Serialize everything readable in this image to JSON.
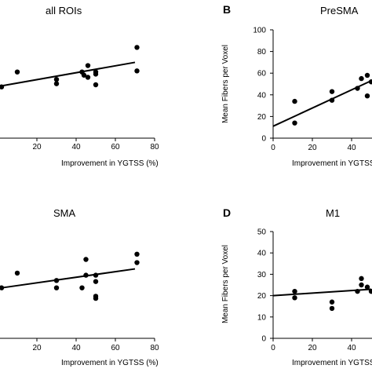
{
  "chart_data": [
    {
      "type": "scatter",
      "letter": "",
      "title": "all ROIs",
      "xlabel": "Improvement in YGTSS (%)",
      "ylabel": "",
      "xlim": [
        0,
        80
      ],
      "x_ticks": [
        "20",
        "40",
        "60",
        "80"
      ],
      "y_ticks": [],
      "points": [
        {
          "x": 10,
          "y": 62
        },
        {
          "x": 2,
          "y": 48
        },
        {
          "x": 30,
          "y": 55
        },
        {
          "x": 30,
          "y": 51
        },
        {
          "x": 43,
          "y": 62
        },
        {
          "x": 44,
          "y": 59
        },
        {
          "x": 46,
          "y": 68
        },
        {
          "x": 46,
          "y": 57
        },
        {
          "x": 50,
          "y": 62
        },
        {
          "x": 50,
          "y": 60
        },
        {
          "x": 50,
          "y": 50
        },
        {
          "x": 71,
          "y": 85
        },
        {
          "x": 71,
          "y": 63
        }
      ],
      "fit": {
        "x0": 2,
        "y0": 49,
        "x1": 70,
        "y1": 71
      }
    },
    {
      "type": "scatter",
      "letter": "B",
      "title": "PreSMA",
      "xlabel": "Improvement in YGTSS (%)",
      "ylabel": "Mean Fibers per Voxel",
      "xlim": [
        0,
        80
      ],
      "ylim": [
        0,
        100
      ],
      "x_ticks": [
        "0",
        "20",
        "40",
        "60"
      ],
      "y_ticks": [
        "0",
        "20",
        "40",
        "60",
        "80",
        "100"
      ],
      "points": [
        {
          "x": 11,
          "y": 34
        },
        {
          "x": 11,
          "y": 14
        },
        {
          "x": 30,
          "y": 43
        },
        {
          "x": 30,
          "y": 35
        },
        {
          "x": 43,
          "y": 46
        },
        {
          "x": 45,
          "y": 55
        },
        {
          "x": 48,
          "y": 58
        },
        {
          "x": 48,
          "y": 39
        },
        {
          "x": 50,
          "y": 52
        }
      ],
      "fit": {
        "x0": 0,
        "y0": 11,
        "x1": 50,
        "y1": 53
      }
    },
    {
      "type": "scatter",
      "letter": "",
      "title": "SMA",
      "xlabel": "Improvement in YGTSS (%)",
      "ylabel": "",
      "xlim": [
        0,
        80
      ],
      "x_ticks": [
        "20",
        "40",
        "60",
        "80"
      ],
      "y_ticks": [],
      "points": [
        {
          "x": 10,
          "y": 62
        },
        {
          "x": 2,
          "y": 48
        },
        {
          "x": 30,
          "y": 55
        },
        {
          "x": 30,
          "y": 48
        },
        {
          "x": 43,
          "y": 48
        },
        {
          "x": 45,
          "y": 75
        },
        {
          "x": 45,
          "y": 60
        },
        {
          "x": 50,
          "y": 60
        },
        {
          "x": 50,
          "y": 54
        },
        {
          "x": 50,
          "y": 40
        },
        {
          "x": 50,
          "y": 38
        },
        {
          "x": 71,
          "y": 80
        },
        {
          "x": 71,
          "y": 72
        }
      ],
      "fit": {
        "x0": 2,
        "y0": 48,
        "x1": 70,
        "y1": 66
      }
    },
    {
      "type": "scatter",
      "letter": "D",
      "title": "M1",
      "xlabel": "Improvement in YGTSS (%)",
      "ylabel": "Mean Fibers per Voxel",
      "xlim": [
        0,
        80
      ],
      "ylim": [
        0,
        50
      ],
      "x_ticks": [
        "0",
        "20",
        "40",
        "60"
      ],
      "y_ticks": [
        "0",
        "10",
        "20",
        "30",
        "40",
        "50"
      ],
      "points": [
        {
          "x": 11,
          "y": 22
        },
        {
          "x": 11,
          "y": 19
        },
        {
          "x": 30,
          "y": 17
        },
        {
          "x": 30,
          "y": 14
        },
        {
          "x": 43,
          "y": 22
        },
        {
          "x": 45,
          "y": 28
        },
        {
          "x": 45,
          "y": 25
        },
        {
          "x": 48,
          "y": 24
        },
        {
          "x": 50,
          "y": 22
        }
      ],
      "fit": {
        "x0": 0,
        "y0": 20,
        "x1": 50,
        "y1": 23
      }
    }
  ]
}
